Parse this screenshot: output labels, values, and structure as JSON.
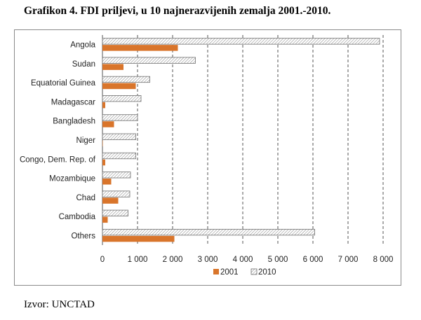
{
  "title": "Grafikon 4. FDI priljevi, u 10 najnerazvijenih zemalja 2001.-2010.",
  "source": "Izvor: UNCTAD",
  "colors": {
    "series_2001": "#d9752b",
    "series_2010_stroke": "#6e6e6e",
    "grid": "#444444"
  },
  "chart_data": {
    "type": "bar",
    "orientation": "horizontal",
    "categories": [
      "Angola",
      "Sudan",
      "Equatorial Guinea",
      "Madagascar",
      "Bangladesh",
      "Niger",
      "Congo, Dem. Rep. of",
      "Mozambique",
      "Chad",
      "Cambodia",
      "Others"
    ],
    "series": [
      {
        "name": "2001",
        "values": [
          2150,
          600,
          950,
          80,
          330,
          10,
          80,
          250,
          450,
          150,
          2050
        ]
      },
      {
        "name": "2010",
        "values": [
          7900,
          2650,
          1350,
          1100,
          1000,
          950,
          950,
          800,
          780,
          730,
          6050
        ]
      }
    ],
    "xlim": [
      0,
      8000
    ],
    "xticks": [
      0,
      1000,
      2000,
      3000,
      4000,
      5000,
      6000,
      7000,
      8000
    ],
    "xtick_labels": [
      "0",
      "1 000",
      "2 000",
      "3 000",
      "4 000",
      "5 000",
      "6 000",
      "7 000",
      "8 000"
    ],
    "legend_position": "bottom",
    "grid": "vertical-dashed"
  }
}
